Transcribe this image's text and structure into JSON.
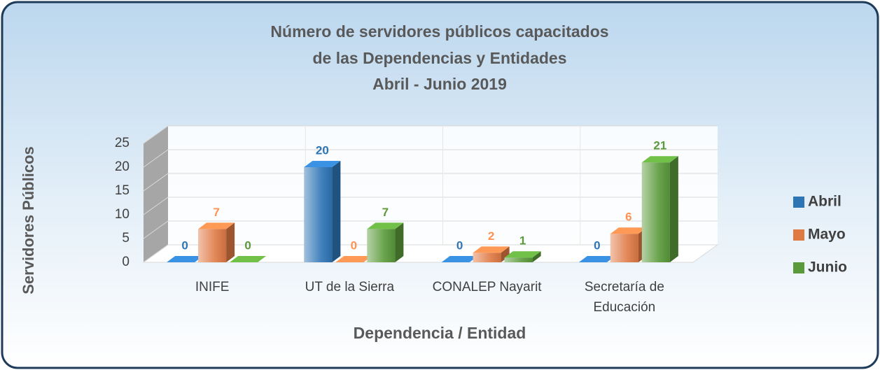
{
  "chart_data": {
    "type": "bar3d",
    "title": [
      "Número de servidores públicos capacitados",
      "de las Dependencias y Entidades",
      "Abril - Junio 2019"
    ],
    "x_label": "Dependencia / Entidad",
    "y_label": "Servidores Públicos",
    "categories": [
      "INIFE",
      "UT de la Sierra",
      "CONALEP Nayarit",
      "Secretaría de Educación"
    ],
    "series": [
      {
        "name": "Abril",
        "color": "#2e75b6",
        "values": [
          0,
          20,
          0,
          0
        ]
      },
      {
        "name": "Mayo",
        "color": "#e07a45",
        "values": [
          7,
          0,
          2,
          6
        ]
      },
      {
        "name": "Junio",
        "color": "#5a9a3a",
        "values": [
          0,
          7,
          1,
          21
        ]
      }
    ],
    "ylim": [
      0,
      25
    ],
    "yticks": [
      0,
      5,
      10,
      15,
      20,
      25
    ],
    "grid": true,
    "legend": "right"
  }
}
